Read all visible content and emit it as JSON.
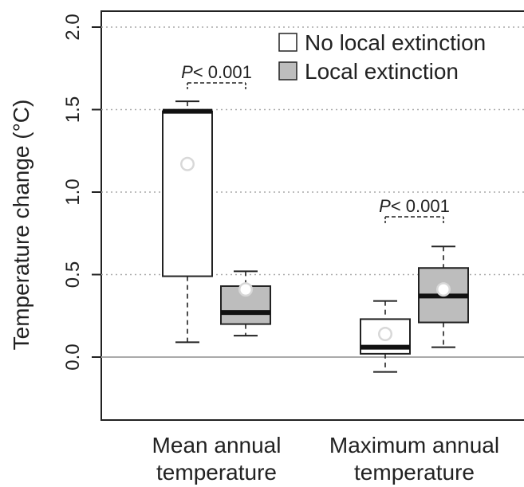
{
  "chart_data": {
    "type": "box",
    "ylabel": "Temperature change (°C)",
    "ylim": [
      -0.4,
      2.0
    ],
    "y_ticks": [
      "0.0",
      "0.5",
      "1.0",
      "1.5",
      "2.0"
    ],
    "grid": "horizontal dotted",
    "categories": [
      "Mean annual\ntemperature",
      "Maximum annual\ntemperature"
    ],
    "legend_position": "top-right",
    "series": [
      {
        "name": "No local extinction",
        "color": "#ffffff",
        "boxes": [
          {
            "whisker_low": 0.09,
            "q1": 0.49,
            "median": 1.49,
            "q3": 1.49,
            "whisker_high": 1.55,
            "mean": 1.17
          },
          {
            "whisker_low": -0.09,
            "q1": 0.02,
            "median": 0.06,
            "q3": 0.23,
            "whisker_high": 0.34,
            "mean": 0.14
          }
        ]
      },
      {
        "name": "Local extinction",
        "color": "#bdbdbd",
        "boxes": [
          {
            "whisker_low": 0.13,
            "q1": 0.2,
            "median": 0.27,
            "q3": 0.43,
            "whisker_high": 0.52,
            "mean": 0.41
          },
          {
            "whisker_low": 0.06,
            "q1": 0.21,
            "median": 0.37,
            "q3": 0.54,
            "whisker_high": 0.67,
            "mean": 0.41
          }
        ]
      }
    ],
    "annotations": [
      {
        "p_symbol": "P",
        "p_rest": "< 0.001",
        "category": 0
      },
      {
        "p_symbol": "P",
        "p_rest": "< 0.001",
        "category": 1
      }
    ]
  }
}
